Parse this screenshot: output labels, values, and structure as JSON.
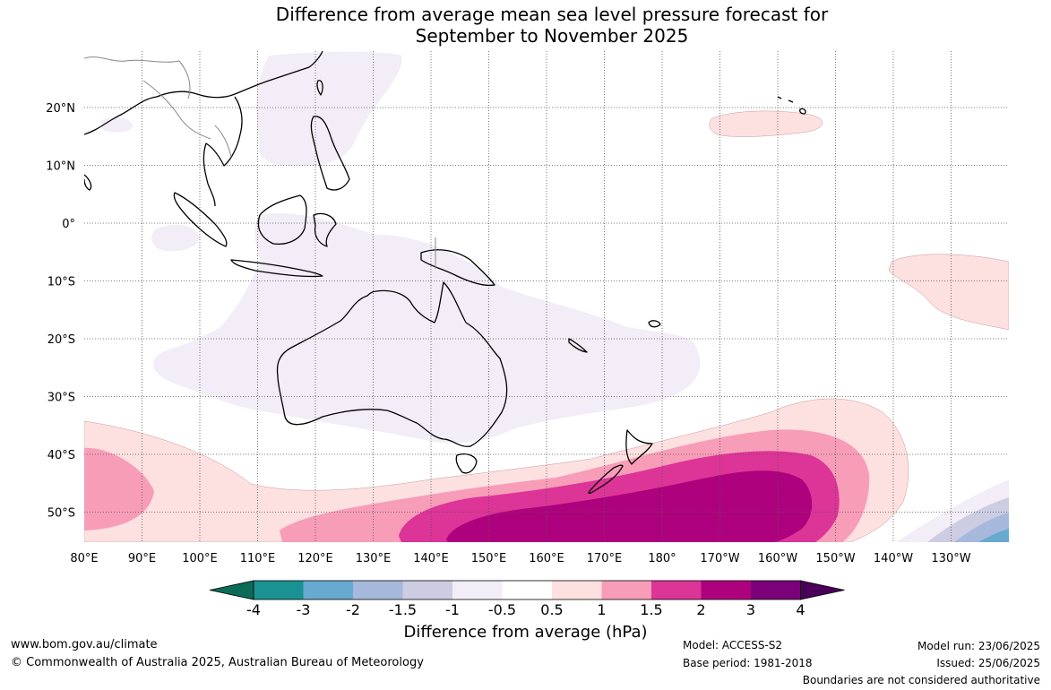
{
  "title": {
    "line1": "Difference from average mean sea level pressure forecast for",
    "line2": "September to November 2025"
  },
  "map": {
    "lat_labels": [
      "20°N",
      "10°N",
      "0°",
      "10°S",
      "20°S",
      "30°S",
      "40°S",
      "50°S"
    ],
    "lon_labels": [
      "80°E",
      "90°E",
      "100°E",
      "110°E",
      "120°E",
      "130°E",
      "140°E",
      "150°E",
      "160°E",
      "170°E",
      "180°",
      "170°W",
      "160°W",
      "150°W",
      "140°W",
      "130°W"
    ],
    "gridlines": "dotted",
    "coastline_color": "#000000",
    "border_color": "#888888"
  },
  "colorbar": {
    "tick_labels": [
      "-4",
      "-3",
      "-2",
      "-1.5",
      "-1",
      "-0.5",
      "0.5",
      "1",
      "1.5",
      "2",
      "3",
      "4"
    ],
    "colors": [
      "#0b6b57",
      "#1a9294",
      "#67a9cf",
      "#a6b9dc",
      "#cccce2",
      "#f2edf6",
      "#ffffff",
      "#fde0e0",
      "#f79db8",
      "#dd3497",
      "#ae017e",
      "#7a0177",
      "#4a0058"
    ],
    "label": "Difference from average (hPa)"
  },
  "footer": {
    "website": "www.bom.gov.au/climate",
    "copyright": "© Commonwealth of Australia 2025, Australian Bureau of Meteorology",
    "model": "Model: ACCESS-S2",
    "base_period": "Base period: 1981-2018",
    "model_run": "Model run: 23/06/2025",
    "issued": "Issued: 25/06/2025",
    "disclaimer": "Boundaries are not considered authoritative"
  }
}
